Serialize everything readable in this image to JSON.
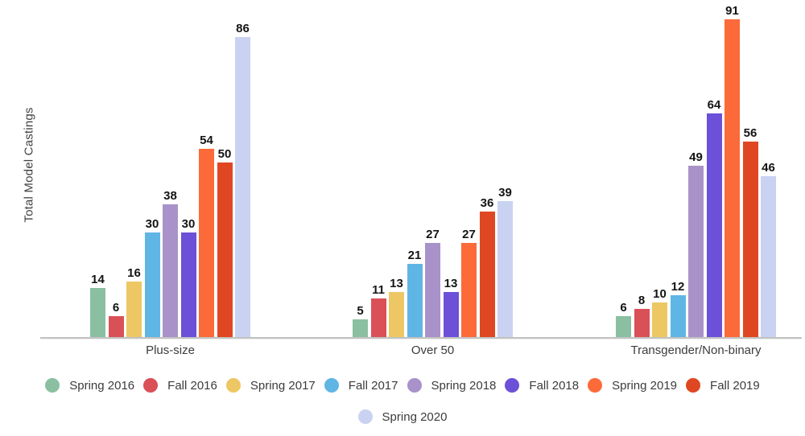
{
  "chart_data": {
    "type": "bar",
    "title": "",
    "xlabel": "",
    "ylabel": "Total Model Castings",
    "categories": [
      "Plus-size",
      "Over 50",
      "Transgender/Non-binary"
    ],
    "series": [
      {
        "name": "Spring 2016",
        "color": "#8AC0A1",
        "values": [
          14,
          5,
          6
        ]
      },
      {
        "name": "Fall 2016",
        "color": "#DA5057",
        "values": [
          6,
          11,
          8
        ]
      },
      {
        "name": "Spring 2017",
        "color": "#EDC764",
        "values": [
          16,
          13,
          10
        ]
      },
      {
        "name": "Fall 2017",
        "color": "#5FB6E4",
        "values": [
          30,
          21,
          12
        ]
      },
      {
        "name": "Spring 2018",
        "color": "#A992C9",
        "values": [
          38,
          27,
          49
        ]
      },
      {
        "name": "Fall 2018",
        "color": "#6C50D8",
        "values": [
          30,
          13,
          64
        ]
      },
      {
        "name": "Spring 2019",
        "color": "#FC6A39",
        "values": [
          54,
          27,
          91
        ]
      },
      {
        "name": "Fall 2019",
        "color": "#DF4722",
        "values": [
          50,
          36,
          56
        ]
      },
      {
        "name": "Spring 2020",
        "color": "#C9D3F1",
        "values": [
          86,
          39,
          46
        ]
      }
    ],
    "ylim": [
      0,
      91
    ],
    "grid": false,
    "value_labels": true,
    "legend_position": "bottom",
    "axis_line_color": "#C2C2C2"
  }
}
